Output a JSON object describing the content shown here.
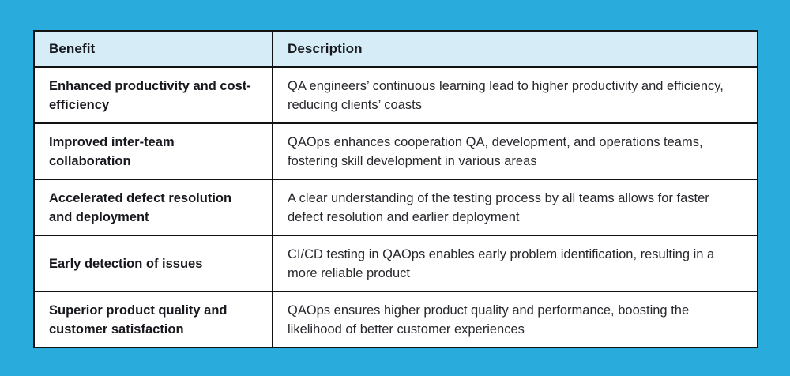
{
  "page": {
    "background_color": "#29abdc"
  },
  "table": {
    "border_color": "#121212",
    "header_background": "#d6ecf7",
    "body_background": "#ffffff",
    "headers": {
      "benefit": "Benefit",
      "description": "Description"
    },
    "rows": [
      {
        "benefit": "Enhanced productivity and cost-efficiency",
        "description": "QA engineers’ continuous learning lead to higher productivity and efficiency, reducing clients’ coasts"
      },
      {
        "benefit": "Improved inter-team collaboration",
        "description": "QAOps enhances cooperation QA, development, and operations teams, fostering skill development in various areas"
      },
      {
        "benefit": "Accelerated defect resolution and deployment",
        "description": "A clear understanding of the testing process by all teams allows for faster defect resolution and earlier deployment"
      },
      {
        "benefit": "Early detection of issues",
        "description": "CI/CD testing in QAOps enables early problem identification, resulting in a more reliable product"
      },
      {
        "benefit": "Superior product quality and customer satisfaction",
        "description": "QAOps ensures higher product quality and performance, boosting the likelihood of better customer experiences"
      }
    ]
  }
}
